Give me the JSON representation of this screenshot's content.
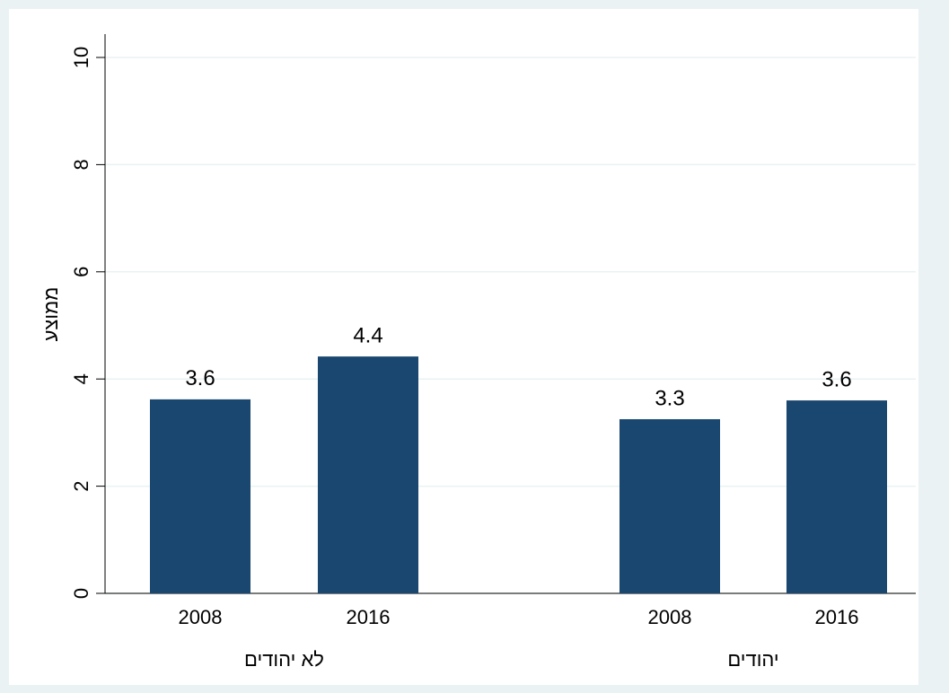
{
  "chart_data": {
    "type": "grouped-bar",
    "y_label": "ממוצע",
    "color": "#1a476f",
    "groups": [
      {
        "label": "לא יהודים",
        "categories": [
          "2008",
          "2016"
        ],
        "values": [
          3.62,
          4.42
        ],
        "value_labels": [
          "3.6",
          "4.4"
        ]
      },
      {
        "label": "יהודים",
        "categories": [
          "2008",
          "2016"
        ],
        "values": [
          3.25,
          3.6
        ],
        "value_labels": [
          "3.3",
          "3.6"
        ]
      }
    ],
    "ylim": [
      0,
      10
    ],
    "yticks": [
      0,
      2,
      4,
      6,
      8,
      10
    ],
    "grid": true
  }
}
